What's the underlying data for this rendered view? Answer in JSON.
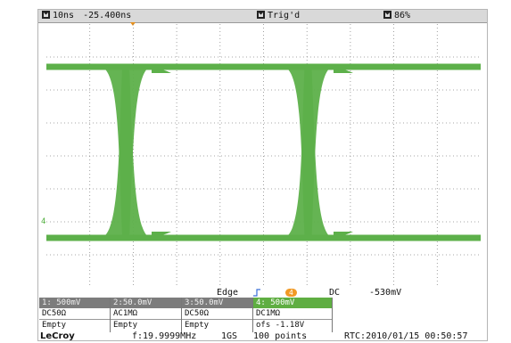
{
  "top": {
    "timebase": "10ns",
    "delay": "-25.400ns",
    "trigger_state": "Trig'd",
    "memory": "86%"
  },
  "plot": {
    "channel_number": "4"
  },
  "trigger": {
    "type": "Edge",
    "source": "4",
    "coupling": "DC",
    "level": "-530mV"
  },
  "channels": [
    {
      "label": "1: 500mV",
      "coupling": "DC50Ω",
      "state": "Empty",
      "active": false
    },
    {
      "label": "2:50.0mV",
      "coupling": "AC1MΩ",
      "state": "Empty",
      "active": false
    },
    {
      "label": "3:50.0mV",
      "coupling": "DC50Ω",
      "state": "Empty",
      "active": false
    },
    {
      "label": "4: 500mV",
      "coupling": "DC1MΩ",
      "state": "ofs   -1.18V",
      "active": true
    }
  ],
  "status": {
    "brand": "LeCroy",
    "frequency": "f:19.9999MHz",
    "sample_rate": "1GS",
    "points": "100 points",
    "rtc": "RTC:2010/01/15 00:50:57"
  },
  "colors": {
    "trace": "#5db04a",
    "grid": "#8a8a8a",
    "trigger_accent": "#f19a25"
  }
}
